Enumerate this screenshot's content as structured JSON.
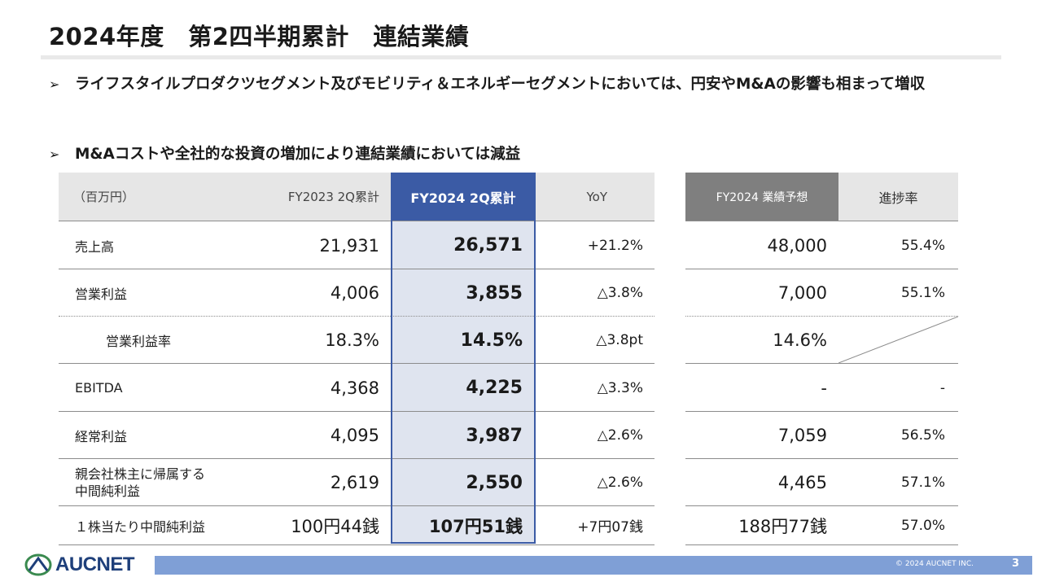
{
  "title": "2024年度　第2四半期累計　連結業績",
  "bullets": [
    "ライフスタイルプロダクツセグメント及びモビリティ＆エネルギーセグメントにおいては、円安やM&Aの影響も相まって増収",
    "M&Aコストや全社的な投資の増加により連結業績においては減益"
  ],
  "bullet_marker": "➢",
  "table": {
    "unit": "（百万円）",
    "headers": {
      "fy2023": "FY2023 2Q累計",
      "fy2024": "FY2024 2Q累計",
      "yoy": "YoY",
      "forecast": "FY2024 業績予想",
      "progress": "進捗率"
    },
    "rows": [
      {
        "label": "売上高",
        "fy2023": "21,931",
        "fy2024": "26,571",
        "yoy": "+21.2%",
        "forecast": "48,000",
        "progress": "55.4%"
      },
      {
        "label": "営業利益",
        "fy2023": "4,006",
        "fy2024": "3,855",
        "yoy": "△3.8%",
        "forecast": "7,000",
        "progress": "55.1%"
      },
      {
        "label": "営業利益率",
        "fy2023": "18.3%",
        "fy2024": "14.5%",
        "yoy": "△3.8pt",
        "forecast": "14.6%",
        "progress": ""
      },
      {
        "label": "EBITDA",
        "fy2023": "4,368",
        "fy2024": "4,225",
        "yoy": "△3.3%",
        "forecast": "-",
        "progress": "-"
      },
      {
        "label": "経常利益",
        "fy2023": "4,095",
        "fy2024": "3,987",
        "yoy": "△2.6%",
        "forecast": "7,059",
        "progress": "56.5%"
      },
      {
        "label": "親会社株主に帰属する\n中間純利益",
        "fy2023": "2,619",
        "fy2024": "2,550",
        "yoy": "△2.6%",
        "forecast": "4,465",
        "progress": "57.1%"
      },
      {
        "label": "１株当たり中間純利益",
        "fy2023": "100円44銭",
        "fy2024": "107円51銭",
        "yoy": "+7円07銭",
        "forecast": "188円77銭",
        "progress": "57.0%"
      }
    ]
  },
  "footer": {
    "logo": "AUCNET",
    "copyright": "© 2024 AUCNET INC.",
    "page": "3"
  },
  "colors": {
    "accent": "#3b5ba5",
    "highlight": "#dfe4ef",
    "header_gray": "#e6e6e6",
    "forecast_header": "#7f7f7f",
    "footer_bar": "#7f9fd6"
  }
}
